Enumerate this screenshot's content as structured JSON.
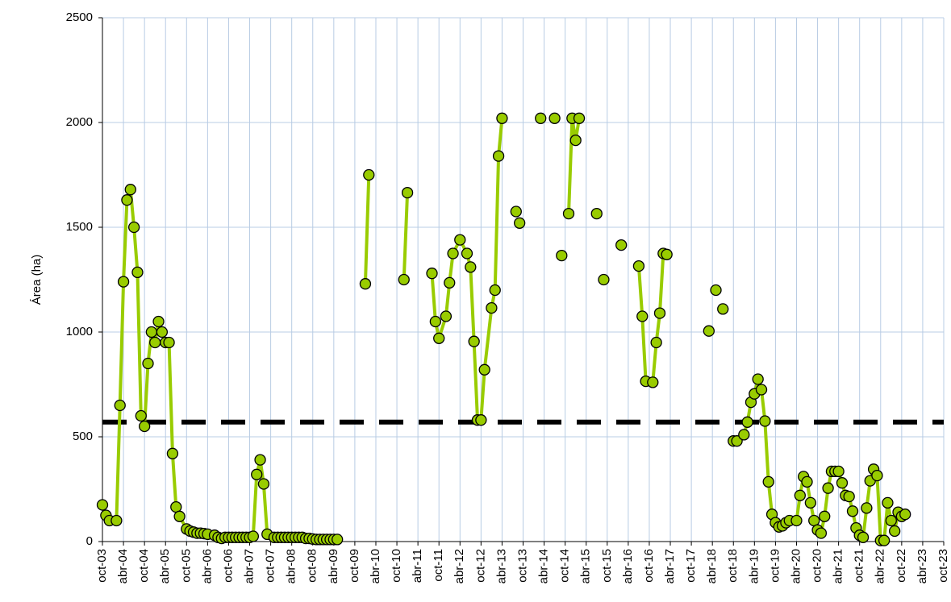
{
  "chart_data": {
    "type": "line",
    "y_label": "Área (ha)",
    "xlim": [
      0,
      240
    ],
    "xticks": [
      {
        "value": 0,
        "label": "oct-03"
      },
      {
        "value": 6,
        "label": "abr-04"
      },
      {
        "value": 12,
        "label": "oct-04"
      },
      {
        "value": 18,
        "label": "abr-05"
      },
      {
        "value": 24,
        "label": "oct-05"
      },
      {
        "value": 30,
        "label": "abr-06"
      },
      {
        "value": 36,
        "label": "oct-06"
      },
      {
        "value": 42,
        "label": "abr-07"
      },
      {
        "value": 48,
        "label": "oct-07"
      },
      {
        "value": 54,
        "label": "abr-08"
      },
      {
        "value": 60,
        "label": "oct-08"
      },
      {
        "value": 66,
        "label": "abr-09"
      },
      {
        "value": 72,
        "label": "oct-09"
      },
      {
        "value": 78,
        "label": "abr-10"
      },
      {
        "value": 84,
        "label": "oct-10"
      },
      {
        "value": 90,
        "label": "abr-11"
      },
      {
        "value": 96,
        "label": "oct-11"
      },
      {
        "value": 102,
        "label": "abr-12"
      },
      {
        "value": 108,
        "label": "oct-12"
      },
      {
        "value": 114,
        "label": "abr-13"
      },
      {
        "value": 120,
        "label": "oct-13"
      },
      {
        "value": 126,
        "label": "abr-14"
      },
      {
        "value": 132,
        "label": "oct-14"
      },
      {
        "value": 138,
        "label": "abr-15"
      },
      {
        "value": 144,
        "label": "oct-15"
      },
      {
        "value": 150,
        "label": "abr-16"
      },
      {
        "value": 156,
        "label": "oct-16"
      },
      {
        "value": 162,
        "label": "abr-17"
      },
      {
        "value": 168,
        "label": "oct-17"
      },
      {
        "value": 174,
        "label": "abr-18"
      },
      {
        "value": 180,
        "label": "oct-18"
      },
      {
        "value": 186,
        "label": "abr-19"
      },
      {
        "value": 192,
        "label": "oct-19"
      },
      {
        "value": 198,
        "label": "abr-20"
      },
      {
        "value": 204,
        "label": "oct-20"
      },
      {
        "value": 210,
        "label": "abr-21"
      },
      {
        "value": 216,
        "label": "oct-21"
      },
      {
        "value": 222,
        "label": "abr-22"
      },
      {
        "value": 228,
        "label": "oct-22"
      },
      {
        "value": 234,
        "label": "abr-23"
      },
      {
        "value": 240,
        "label": "oct-23"
      }
    ],
    "ylim": [
      0,
      2500
    ],
    "yticks": [
      0,
      500,
      1000,
      1500,
      2000,
      2500
    ],
    "grid": true,
    "reference_line": 570,
    "reference_color": "#000000",
    "series": [
      {
        "color": "#99cc00",
        "x": [
          0,
          1,
          2,
          4,
          5,
          6,
          7,
          8,
          9,
          10,
          11,
          12,
          13,
          14,
          15,
          16,
          17,
          18,
          19,
          20,
          21,
          22,
          24,
          25,
          26,
          27,
          28,
          29,
          30,
          32,
          33,
          34,
          35,
          36,
          37,
          38,
          39,
          40,
          41,
          42,
          43,
          44,
          45,
          46,
          47,
          49,
          50,
          51,
          52,
          53,
          54,
          55,
          56,
          57,
          58,
          59,
          60,
          61,
          62,
          63,
          64,
          65,
          66,
          67,
          null,
          75,
          76,
          null,
          86,
          87,
          null,
          94,
          95,
          96,
          98,
          99,
          100,
          102,
          104,
          105,
          106,
          107,
          108,
          109,
          111,
          112,
          113,
          114,
          null,
          118,
          null,
          119,
          null,
          125,
          null,
          129,
          null,
          131,
          null,
          133,
          134,
          135,
          136,
          null,
          141,
          null,
          143,
          null,
          148,
          null,
          153,
          154,
          155,
          157,
          158,
          159,
          160,
          161,
          null,
          173,
          null,
          175,
          null,
          177,
          null,
          180,
          181,
          183,
          184,
          185,
          186,
          187,
          188,
          189,
          190,
          191,
          192,
          193,
          194,
          195,
          196,
          198,
          199,
          200,
          201,
          202,
          203,
          204,
          205,
          206,
          207,
          208,
          209,
          210,
          211,
          212,
          213,
          214,
          215,
          216,
          217,
          218,
          219,
          220,
          221,
          222,
          223,
          224,
          225,
          226,
          227,
          228,
          229
        ],
        "values": [
          175,
          125,
          100,
          100,
          650,
          1240,
          1630,
          1680,
          1500,
          1285,
          600,
          550,
          850,
          1000,
          950,
          1050,
          1000,
          950,
          950,
          420,
          165,
          120,
          60,
          50,
          45,
          40,
          40,
          38,
          35,
          30,
          20,
          15,
          20,
          20,
          20,
          20,
          20,
          20,
          20,
          20,
          25,
          320,
          390,
          275,
          35,
          20,
          20,
          20,
          20,
          20,
          20,
          20,
          20,
          20,
          15,
          15,
          12,
          10,
          10,
          10,
          10,
          10,
          10,
          10,
          null,
          1230,
          1750,
          null,
          1250,
          1665,
          null,
          1280,
          1050,
          970,
          1075,
          1235,
          1375,
          1440,
          1375,
          1310,
          955,
          580,
          580,
          820,
          1115,
          1200,
          1840,
          2020,
          null,
          1575,
          null,
          1520,
          null,
          2020,
          null,
          2020,
          null,
          1365,
          null,
          1565,
          2020,
          1915,
          2020,
          null,
          1565,
          null,
          1250,
          null,
          1415,
          null,
          1315,
          1075,
          765,
          760,
          950,
          1090,
          1375,
          1370,
          null,
          1005,
          null,
          1200,
          null,
          1110,
          null,
          480,
          480,
          510,
          570,
          665,
          705,
          775,
          725,
          575,
          285,
          130,
          90,
          70,
          75,
          90,
          100,
          100,
          220,
          310,
          285,
          185,
          100,
          55,
          40,
          120,
          255,
          335,
          335,
          335,
          280,
          220,
          215,
          145,
          65,
          30,
          20,
          160,
          290,
          345,
          315,
          5,
          5,
          185,
          100,
          50,
          140,
          120,
          130
        ]
      }
    ]
  }
}
